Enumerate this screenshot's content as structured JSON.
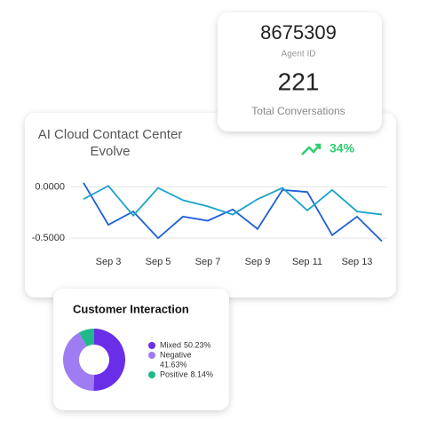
{
  "agent_card": {
    "agent_id": "8675309",
    "agent_id_label": "Agent ID",
    "conversations": "221",
    "conversations_label": "Total Conversations"
  },
  "chart_data": [
    {
      "type": "line",
      "title": "AI Cloud Contact Center Evolve",
      "annotation": "34%",
      "categories": [
        null,
        "Sep 3",
        null,
        "Sep 5",
        null,
        "Sep 7",
        null,
        "Sep 9",
        null,
        "Sep 11",
        null,
        "Sep 13",
        null
      ],
      "series": [
        {
          "color": "#1f5fd6",
          "values": [
            0.04,
            -0.37,
            -0.24,
            -0.5,
            -0.29,
            -0.33,
            -0.22,
            -0.41,
            -0.03,
            -0.05,
            -0.47,
            -0.29,
            -0.53
          ]
        },
        {
          "color": "#1aa3c9",
          "values": [
            -0.12,
            0.01,
            -0.28,
            -0.01,
            -0.13,
            -0.19,
            -0.27,
            -0.12,
            -0.01,
            -0.23,
            -0.03,
            -0.24,
            -0.27
          ]
        }
      ],
      "ylim": [
        -0.62,
        0.09
      ],
      "yticks": [
        {
          "value": 0,
          "label": "0.0000"
        },
        {
          "value": -0.5,
          "label": "-0.5000"
        }
      ],
      "grid": true
    },
    {
      "type": "pie",
      "title": "Customer Interaction",
      "categories": [
        "Mixed",
        "Negative",
        "Positive"
      ],
      "values": [
        50.23,
        41.63,
        8.14
      ],
      "value_labels": [
        "50.23%",
        "41.63%",
        "8.14%"
      ],
      "colors": [
        "#6a2ee8",
        "#a07cf2",
        "#1fb88a"
      ]
    }
  ]
}
